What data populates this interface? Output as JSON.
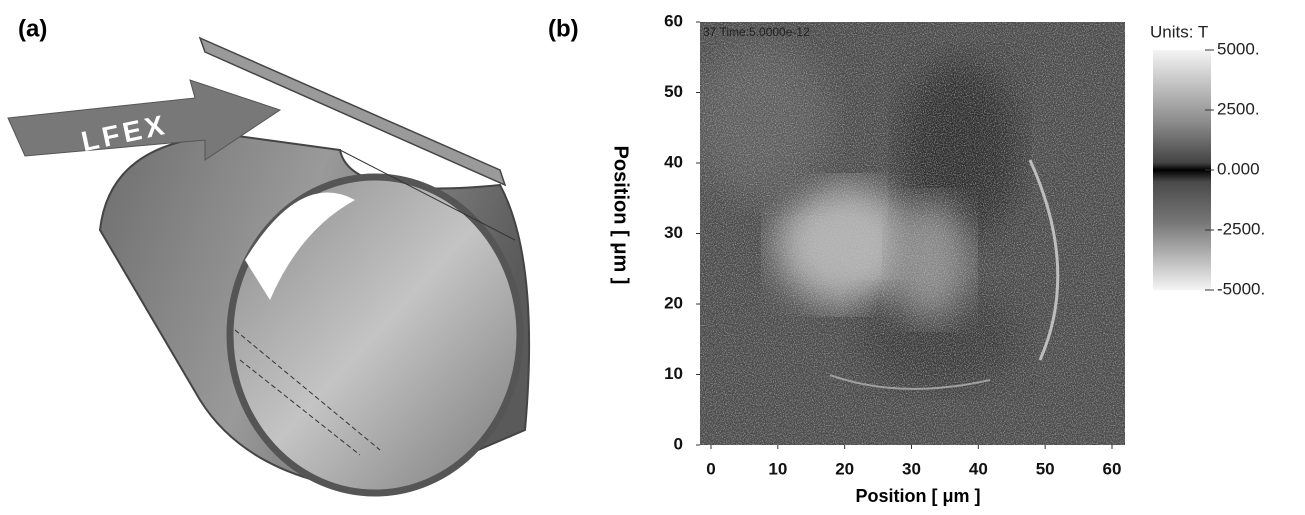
{
  "panel_a": {
    "label": "(a)",
    "arrow_label": "LFEX"
  },
  "chart_data": {
    "type": "heatmap",
    "panel_label": "(b)",
    "annotation": "37   Time:5.0000e-12",
    "xlabel": "Position  [ μm ]",
    "ylabel": "Position  [ μm ]",
    "xlim": [
      0,
      60
    ],
    "ylim": [
      0,
      60
    ],
    "xticks": [
      0,
      10,
      20,
      30,
      40,
      50,
      60
    ],
    "yticks": [
      0,
      10,
      20,
      30,
      40,
      50,
      60
    ],
    "colorbar": {
      "title": "Units: T",
      "lim": [
        -5000,
        5000
      ],
      "ticks": [
        {
          "value": 5000,
          "label": "5000."
        },
        {
          "value": 2500,
          "label": "2500."
        },
        {
          "value": 0,
          "label": "0.000"
        },
        {
          "value": -2500,
          "label": "-2500."
        },
        {
          "value": -5000,
          "label": "-5000."
        }
      ]
    }
  }
}
